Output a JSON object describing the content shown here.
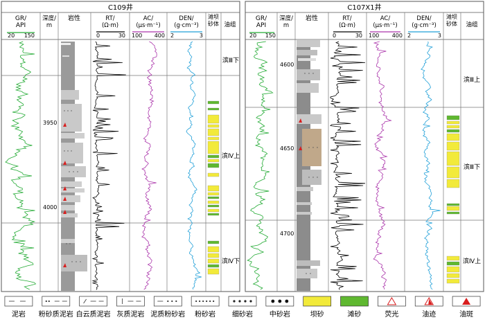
{
  "wells": [
    {
      "id": "C109",
      "title": "C109井",
      "headers": {
        "gr": "GR/\nAPI",
        "gr_min": "20",
        "gr_max": "150",
        "depth": "深度/\nm",
        "lith": "岩性",
        "rt": "RT/\n(Ω·m)",
        "rt_min": "0",
        "rt_max": "30",
        "ac": "AC/\n(μs·m⁻¹)",
        "ac_min": "100",
        "ac_max": "400",
        "den": "DEN/\n(g·cm⁻³)",
        "den_min": "2",
        "den_max": "3",
        "bar": "滩坝\n砂体",
        "oil": "油组"
      },
      "depth_ticks": [
        "3950",
        "4000"
      ],
      "zones": [
        "滨Ⅲ下",
        "滨Ⅳ上",
        "滨Ⅳ下"
      ]
    },
    {
      "id": "C107X1",
      "title": "C107X1井",
      "headers": {
        "gr": "GR/\nAPI",
        "gr_min": "20",
        "gr_max": "150",
        "depth": "深度/\nm",
        "lith": "岩性",
        "rt": "RT/\n(Ω·m)",
        "rt_min": "0",
        "rt_max": "30",
        "ac": "AC/\n(μs·m⁻¹)",
        "ac_min": "100",
        "ac_max": "400",
        "den": "DEN/\n(g·cm⁻³)",
        "den_min": "2",
        "den_max": "3",
        "bar": "滩坝\n砂体",
        "oil": "油组"
      },
      "depth_ticks": [
        "4600",
        "4650",
        "4700"
      ],
      "zones": [
        "滨Ⅲ上",
        "滨Ⅲ下",
        "滨Ⅳ上"
      ]
    }
  ],
  "legend": [
    {
      "label": "泥岩",
      "pattern": "mudstone"
    },
    {
      "label": "粉砂质泥岩",
      "pattern": "silty-mudstone"
    },
    {
      "label": "白云质泥岩",
      "pattern": "dolomitic-mudstone"
    },
    {
      "label": "灰质泥岩",
      "pattern": "calcareous-mudstone"
    },
    {
      "label": "泥质粉砂岩",
      "pattern": "argillaceous-siltstone"
    },
    {
      "label": "粉砂岩",
      "pattern": "siltstone"
    },
    {
      "label": "细砂岩",
      "pattern": "fine-sandstone"
    },
    {
      "label": "中砂岩",
      "pattern": "medium-sandstone"
    },
    {
      "label": "坝砂",
      "pattern": "bar-sand"
    },
    {
      "label": "滩砂",
      "pattern": "beach-sand"
    },
    {
      "label": "荧光",
      "pattern": "fluorescence"
    },
    {
      "label": "油迹",
      "pattern": "oil-trace"
    },
    {
      "label": "油斑",
      "pattern": "oil-spot"
    }
  ],
  "colors": {
    "gr": "#22aa33",
    "rt": "#000000",
    "ac": "#aa33aa",
    "den": "#1f9fd8",
    "bar_sand": "#f2ea3a",
    "beach_sand": "#5fb830",
    "oil": "#d81e1e",
    "oil_sand": "#c0a88a"
  }
}
